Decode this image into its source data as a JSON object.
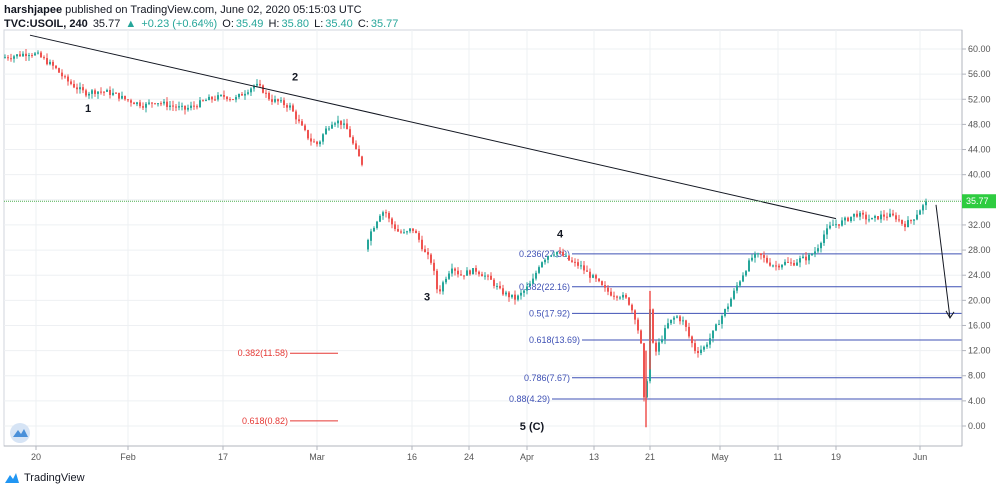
{
  "header": {
    "author": "harshjapee",
    "published": "published on TradingView.com, June 02, 2020 05:15:03 UTC",
    "symbol": "TVC:USOIL, 240",
    "last": "35.77",
    "change": "+0.23 (+0.64%)",
    "open_label": "O:",
    "open": "35.49",
    "high_label": "H:",
    "high": "35.80",
    "low_label": "L:",
    "low": "35.40",
    "close_label": "C:",
    "close": "35.77"
  },
  "brand": {
    "name": "TradingView"
  },
  "colors": {
    "up": "#26a69a",
    "down": "#ef5350",
    "grid": "#eef0f3",
    "fib_blue": "#3f51b5",
    "fib_red": "#e53935",
    "price_line": "#4caf50"
  },
  "chart_data": {
    "type": "candlestick",
    "symbol": "TVC:USOIL",
    "ylim": [
      -2,
      63
    ],
    "y_ticks": [
      "60.00",
      "56.00",
      "52.00",
      "48.00",
      "44.00",
      "40.00",
      "36.00",
      "32.00",
      "28.00",
      "24.00",
      "20.00",
      "16.00",
      "12.00",
      "8.00",
      "4.00",
      "0.00"
    ],
    "x_ticks": [
      "20",
      "Feb",
      "17",
      "Mar",
      "16",
      "24",
      "Apr",
      "13",
      "21",
      "May",
      "11",
      "19",
      "Jun"
    ],
    "current_price": "35.77",
    "price_path": [
      [
        0,
        58.6
      ],
      [
        10,
        58.8
      ],
      [
        20,
        59.1
      ],
      [
        30,
        59.4
      ],
      [
        38,
        59.0
      ],
      [
        45,
        58.2
      ],
      [
        55,
        57.0
      ],
      [
        65,
        55.2
      ],
      [
        75,
        54.0
      ],
      [
        85,
        53.0
      ],
      [
        95,
        53.3
      ],
      [
        105,
        53.2
      ],
      [
        115,
        52.8
      ],
      [
        125,
        52.0
      ],
      [
        135,
        51.5
      ],
      [
        145,
        51.0
      ],
      [
        155,
        51.7
      ],
      [
        165,
        51.2
      ],
      [
        175,
        50.8
      ],
      [
        185,
        50.4
      ],
      [
        195,
        51.0
      ],
      [
        205,
        51.8
      ],
      [
        215,
        52.2
      ],
      [
        225,
        52.5
      ],
      [
        235,
        52.0
      ],
      [
        245,
        53.2
      ],
      [
        255,
        54.3
      ],
      [
        262,
        53.6
      ],
      [
        270,
        52.0
      ],
      [
        280,
        51.5
      ],
      [
        290,
        50.8
      ],
      [
        300,
        48.0
      ],
      [
        310,
        45.5
      ],
      [
        318,
        44.8
      ],
      [
        325,
        47.0
      ],
      [
        333,
        48.6
      ],
      [
        340,
        48.4
      ],
      [
        348,
        47.0
      ],
      [
        355,
        44.0
      ],
      [
        362,
        41.8
      ],
      [
        368,
        30.0
      ],
      [
        375,
        32.2
      ],
      [
        380,
        33.8
      ],
      [
        385,
        34.3
      ],
      [
        390,
        32.5
      ],
      [
        398,
        31.0
      ],
      [
        405,
        30.5
      ],
      [
        412,
        31.5
      ],
      [
        418,
        30.0
      ],
      [
        425,
        27.5
      ],
      [
        432,
        26.0
      ],
      [
        438,
        21.0
      ],
      [
        445,
        23.5
      ],
      [
        452,
        25.5
      ],
      [
        460,
        24.0
      ],
      [
        468,
        24.5
      ],
      [
        476,
        24.8
      ],
      [
        484,
        24.0
      ],
      [
        492,
        23.0
      ],
      [
        500,
        21.5
      ],
      [
        508,
        20.8
      ],
      [
        516,
        20.2
      ],
      [
        524,
        21.5
      ],
      [
        532,
        22.8
      ],
      [
        540,
        26.0
      ],
      [
        548,
        27.2
      ],
      [
        556,
        27.8
      ],
      [
        564,
        27.0
      ],
      [
        572,
        26.0
      ],
      [
        580,
        25.5
      ],
      [
        588,
        24.2
      ],
      [
        596,
        23.2
      ],
      [
        604,
        21.8
      ],
      [
        612,
        21.0
      ],
      [
        620,
        20.8
      ],
      [
        628,
        20.0
      ],
      [
        636,
        17.0
      ],
      [
        642,
        12.0
      ],
      [
        645,
        0.2
      ],
      [
        650,
        18.5
      ],
      [
        654,
        11.0
      ],
      [
        660,
        13.5
      ],
      [
        668,
        16.2
      ],
      [
        676,
        17.5
      ],
      [
        684,
        16.5
      ],
      [
        690,
        13.8
      ],
      [
        696,
        11.8
      ],
      [
        704,
        12.5
      ],
      [
        712,
        14.5
      ],
      [
        720,
        17.0
      ],
      [
        728,
        19.2
      ],
      [
        736,
        22.0
      ],
      [
        744,
        24.5
      ],
      [
        752,
        26.8
      ],
      [
        760,
        27.2
      ],
      [
        768,
        26.0
      ],
      [
        776,
        25.5
      ],
      [
        784,
        26.0
      ],
      [
        792,
        25.8
      ],
      [
        800,
        26.5
      ],
      [
        808,
        26.8
      ],
      [
        816,
        28.0
      ],
      [
        824,
        30.5
      ],
      [
        832,
        32.0
      ],
      [
        840,
        32.3
      ],
      [
        848,
        33.0
      ],
      [
        856,
        33.8
      ],
      [
        864,
        33.2
      ],
      [
        872,
        32.8
      ],
      [
        880,
        33.4
      ],
      [
        888,
        33.5
      ],
      [
        896,
        33.2
      ],
      [
        904,
        32.0
      ],
      [
        912,
        32.8
      ],
      [
        920,
        34.5
      ],
      [
        928,
        35.77
      ]
    ],
    "trendline": {
      "from": [
        30,
        62.2
      ],
      "to": [
        836,
        33.0
      ]
    },
    "arrow": {
      "from": [
        936,
        35.2
      ],
      "to": [
        950,
        17.2
      ]
    },
    "wave_labels": [
      {
        "text": "1",
        "x": 88,
        "price": 50.0
      },
      {
        "text": "2",
        "x": 295,
        "price": 55.0
      },
      {
        "text": "3",
        "x": 427,
        "price": 20.0
      },
      {
        "text": "4",
        "x": 560,
        "price": 30.0
      },
      {
        "text": "5 (C)",
        "x": 532,
        "price": -0.6
      }
    ],
    "fib_blue": [
      {
        "label": "0.236(27.39)",
        "price": 27.39,
        "x1": 572,
        "x2": 962
      },
      {
        "label": "0.382(22.16)",
        "price": 22.16,
        "x1": 572,
        "x2": 962
      },
      {
        "label": "0.5(17.92)",
        "price": 17.92,
        "x1": 572,
        "x2": 962
      },
      {
        "label": "0.618(13.69)",
        "price": 13.69,
        "x1": 582,
        "x2": 962
      },
      {
        "label": "0.786(7.67)",
        "price": 7.67,
        "x1": 572,
        "x2": 962
      },
      {
        "label": "0.88(4.29)",
        "price": 4.29,
        "x1": 552,
        "x2": 962
      }
    ],
    "fib_red": [
      {
        "label": "0.382(11.58)",
        "price": 11.58,
        "x1": 290,
        "x2": 338
      },
      {
        "label": "0.618(0.82)",
        "price": 0.82,
        "x1": 290,
        "x2": 338
      }
    ]
  }
}
